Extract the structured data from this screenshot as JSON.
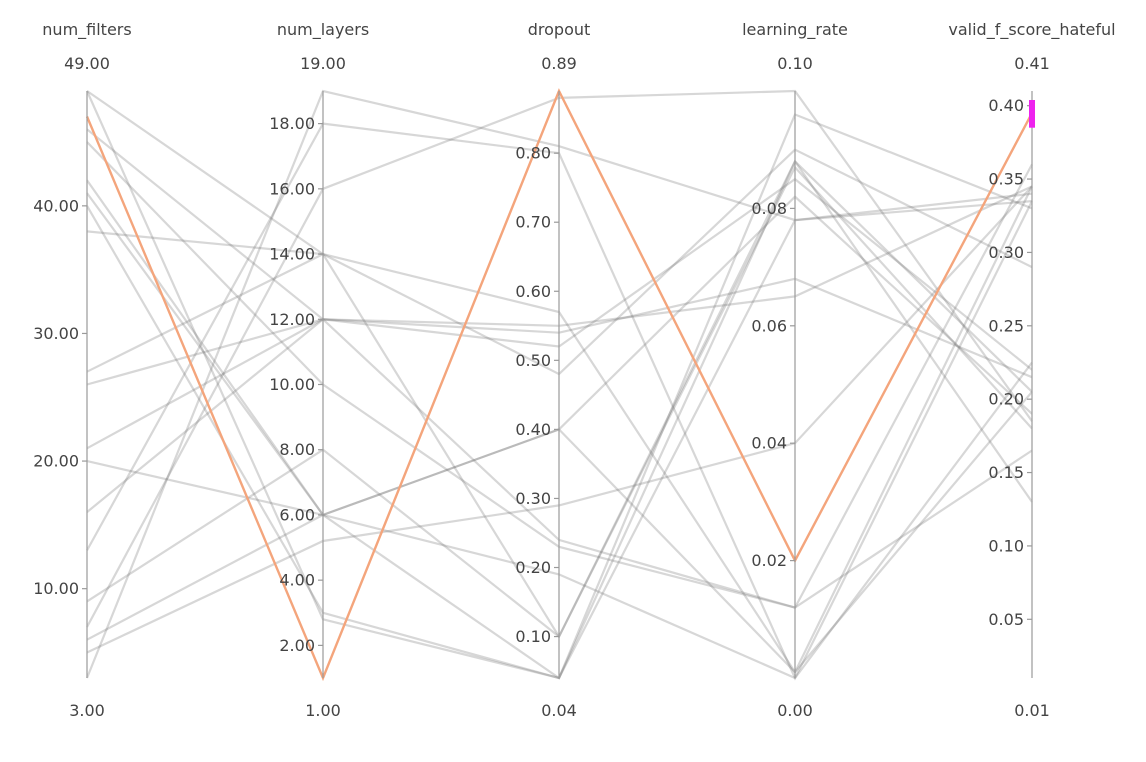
{
  "chart_data": {
    "type": "parallel_coordinates",
    "axes": [
      {
        "name": "num_filters",
        "range": [
          3,
          49
        ],
        "max_label": "49.00",
        "min_label": "3.00",
        "ticks": [
          10,
          20,
          30,
          40
        ],
        "tick_labels": [
          "10.00",
          "20.00",
          "30.00",
          "40.00"
        ],
        "tick_side": "left"
      },
      {
        "name": "num_layers",
        "range": [
          1,
          19
        ],
        "max_label": "19.00",
        "min_label": "1.00",
        "ticks": [
          2,
          4,
          6,
          8,
          10,
          12,
          14,
          16,
          18
        ],
        "tick_labels": [
          "2.00",
          "4.00",
          "6.00",
          "8.00",
          "10.00",
          "12.00",
          "14.00",
          "16.00",
          "18.00"
        ],
        "tick_side": "left"
      },
      {
        "name": "dropout",
        "range": [
          0.04,
          0.89
        ],
        "max_label": "0.89",
        "min_label": "0.04",
        "ticks": [
          0.1,
          0.2,
          0.3,
          0.4,
          0.5,
          0.6,
          0.7,
          0.8
        ],
        "tick_labels": [
          "0.10",
          "0.20",
          "0.30",
          "0.40",
          "0.50",
          "0.60",
          "0.70",
          "0.80"
        ],
        "tick_side": "left"
      },
      {
        "name": "learning_rate",
        "range": [
          0.0,
          0.1
        ],
        "max_label": "0.10",
        "min_label": "0.00",
        "ticks": [
          0.02,
          0.04,
          0.06,
          0.08
        ],
        "tick_labels": [
          "0.02",
          "0.04",
          "0.06",
          "0.08"
        ],
        "tick_side": "left"
      },
      {
        "name": "valid_f_score_hateful",
        "range": [
          0.01,
          0.41
        ],
        "max_label": "0.41",
        "min_label": "0.01",
        "ticks": [
          0.05,
          0.1,
          0.15,
          0.2,
          0.25,
          0.3,
          0.35,
          0.4
        ],
        "tick_labels": [
          "0.05",
          "0.10",
          "0.15",
          "0.20",
          "0.25",
          "0.30",
          "0.35",
          "0.40"
        ],
        "tick_side": "left"
      }
    ],
    "runs": [
      {
        "values": [
          47,
          1,
          0.89,
          0.02,
          0.395
        ],
        "highlight": true
      },
      {
        "values": [
          49,
          14,
          0.57,
          0.001,
          0.205
        ]
      },
      {
        "values": [
          46,
          12,
          0.52,
          0.085,
          0.22
        ]
      },
      {
        "values": [
          42,
          6,
          0.04,
          0.088,
          0.205
        ]
      },
      {
        "values": [
          40,
          3,
          0.04,
          0.096,
          0.33
        ]
      },
      {
        "values": [
          38,
          14,
          0.48,
          0.09,
          0.29
        ]
      },
      {
        "values": [
          26,
          12,
          0.55,
          0.065,
          0.345
        ]
      },
      {
        "values": [
          21,
          12,
          0.54,
          0.068,
          0.215
        ]
      },
      {
        "values": [
          20,
          6,
          0.4,
          0.082,
          0.19
        ]
      },
      {
        "values": [
          13,
          18,
          0.8,
          0.0,
          0.335
        ]
      },
      {
        "values": [
          7,
          16,
          0.88,
          0.1,
          0.185
        ]
      },
      {
        "values": [
          6,
          6,
          0.19,
          0.0,
          0.225
        ]
      },
      {
        "values": [
          5,
          5.2,
          0.29,
          0.04,
          0.345
        ]
      },
      {
        "values": [
          3,
          19,
          0.81,
          0.078,
          0.335
        ]
      },
      {
        "values": [
          49,
          2.8,
          0.04,
          0.078,
          0.34
        ]
      },
      {
        "values": [
          45,
          10,
          0.23,
          0.012,
          0.36
        ]
      },
      {
        "values": [
          41,
          6,
          0.4,
          0.001,
          0.345
        ]
      },
      {
        "values": [
          27,
          14,
          0.1,
          0.087,
          0.18
        ]
      },
      {
        "values": [
          16,
          12,
          0.24,
          0.012,
          0.165
        ]
      },
      {
        "values": [
          9,
          8,
          0.1,
          0.088,
          0.13
        ]
      }
    ],
    "highlight_color": "#f4a57c",
    "line_color": "#6f6f6f",
    "brush": {
      "axis": "valid_f_score_hateful",
      "range": [
        0.385,
        0.41
      ],
      "color": "#ee22ee"
    }
  }
}
